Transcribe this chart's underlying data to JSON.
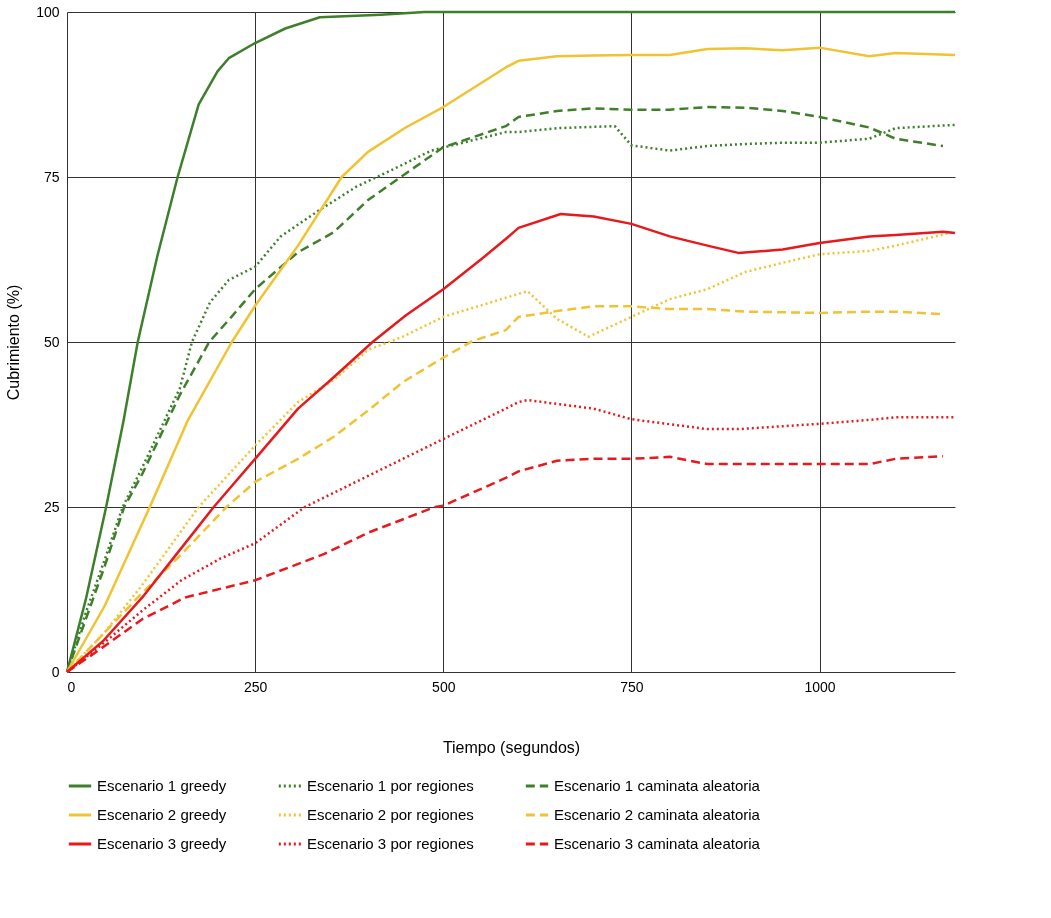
{
  "chart_data": {
    "type": "line",
    "xlabel": "Tiempo (segundos)",
    "ylabel": "Cubrimiento (%)",
    "xlim": [
      0,
      1180
    ],
    "xticks": [
      0,
      250,
      500,
      750,
      1000
    ],
    "ylim": [
      0,
      100
    ],
    "yticks": [
      0,
      25,
      50,
      75,
      100
    ],
    "grid": true,
    "legend": "bottom",
    "series": [
      {
        "name": "Escenario 1 greedy",
        "color": "#3d7f2a",
        "line_style": "solid",
        "x": [
          0,
          25,
          52,
          75,
          94,
          120,
          147,
          175,
          200,
          215,
          250,
          290,
          336,
          417,
          475,
          1180
        ],
        "values": [
          0,
          11,
          25,
          38,
          50,
          63,
          75,
          86,
          91,
          93,
          95.3,
          97.5,
          99.2,
          99.6,
          100,
          100
        ]
      },
      {
        "name": "Escenario 1 por regiones",
        "color": "#3d7f2a",
        "line_style": "dotted",
        "x": [
          0,
          25,
          50,
          74,
          100,
          125,
          150,
          166,
          190,
          215,
          250,
          284,
          333,
          384,
          434,
          484,
          583,
          600,
          651,
          700,
          728,
          750,
          801,
          851,
          901,
          951,
          1000,
          1066,
          1101,
          1180
        ],
        "values": [
          0,
          9,
          17,
          25,
          31,
          37,
          43,
          50,
          56,
          59.4,
          61.4,
          66,
          69.8,
          73.5,
          76.2,
          79,
          81.8,
          81.8,
          82.4,
          82.6,
          82.7,
          79.8,
          79,
          79.7,
          80,
          80.2,
          80.2,
          80.8,
          82.4,
          82.9
        ]
      },
      {
        "name": "Escenario 1 caminata aleatoria",
        "color": "#3d7f2a",
        "line_style": "dashed",
        "x": [
          0,
          25,
          50,
          76,
          100,
          125,
          150,
          189,
          220,
          250,
          307,
          354,
          400,
          446,
          500,
          583,
          600,
          651,
          700,
          750,
          801,
          851,
          901,
          951,
          1000,
          1066,
          1101,
          1164
        ],
        "values": [
          0,
          8,
          16,
          25,
          30,
          36,
          42,
          50,
          54,
          58,
          63.6,
          66.6,
          71.5,
          75.2,
          79.5,
          82.7,
          84.1,
          85,
          85.4,
          85.2,
          85.2,
          85.6,
          85.5,
          85,
          84.1,
          82.5,
          80.8,
          79.7
        ]
      },
      {
        "name": "Escenario 2 greedy",
        "color": "#f1c232",
        "line_style": "solid",
        "x": [
          0,
          50,
          110,
          160,
          219,
          250,
          307,
          365,
          400,
          450,
          500,
          583,
          600,
          651,
          700,
          750,
          801,
          851,
          901,
          951,
          1000,
          1066,
          1101,
          1180
        ],
        "values": [
          0,
          10,
          25,
          38,
          50,
          55.5,
          64.6,
          75,
          78.8,
          82.5,
          85.6,
          91.6,
          92.6,
          93.3,
          93.4,
          93.5,
          93.5,
          94.4,
          94.5,
          94.2,
          94.6,
          93.3,
          93.8,
          93.5
        ]
      },
      {
        "name": "Escenario 2 por regiones",
        "color": "#f1c232",
        "line_style": "dotted",
        "x": [
          0,
          50,
          100,
          175,
          250,
          307,
          354,
          400,
          446,
          500,
          583,
          612,
          651,
          693,
          750,
          801,
          851,
          901,
          951,
          1000,
          1066,
          1101,
          1180
        ],
        "values": [
          0,
          6,
          13.2,
          25,
          34.3,
          40.9,
          44.2,
          48.8,
          50.8,
          53.8,
          56.7,
          57.7,
          53.5,
          50.8,
          53.8,
          56.5,
          58,
          60.6,
          62,
          63.3,
          63.8,
          64.6,
          66.7
        ]
      },
      {
        "name": "Escenario 2 caminata aleatoria",
        "color": "#f1c232",
        "line_style": "dashed",
        "x": [
          0,
          50,
          100,
          150,
          212,
          250,
          307,
          354,
          400,
          446,
          498,
          538,
          583,
          600,
          651,
          700,
          750,
          801,
          851,
          901,
          1000,
          1066,
          1101,
          1164
        ],
        "values": [
          0,
          6,
          12,
          17.6,
          25,
          28.8,
          32.3,
          35.6,
          39.6,
          43.9,
          47.5,
          50.1,
          51.8,
          53.8,
          54.7,
          55.4,
          55.4,
          55,
          55,
          54.6,
          54.4,
          54.6,
          54.6,
          54.2
        ]
      },
      {
        "name": "Escenario 3 greedy",
        "color": "#e8191c",
        "line_style": "solid",
        "x": [
          0,
          48,
          100,
          150,
          195,
          250,
          307,
          350,
          406,
          450,
          500,
          550,
          583,
          600,
          656,
          700,
          750,
          801,
          851,
          892,
          951,
          1000,
          1066,
          1101,
          1164,
          1180
        ],
        "values": [
          0,
          4.7,
          11.3,
          18.5,
          25,
          32.3,
          39.9,
          44.2,
          50,
          54,
          58,
          62.5,
          65.6,
          67.3,
          69.4,
          69,
          67.9,
          66,
          64.6,
          63.5,
          64,
          65,
          66,
          66.2,
          66.7,
          66.5
        ]
      },
      {
        "name": "Escenario 3 por regiones",
        "color": "#e8191c",
        "line_style": "dotted",
        "x": [
          0,
          50,
          100,
          152,
          204,
          250,
          316,
          400,
          500,
          583,
          600,
          612,
          700,
          750,
          851,
          892,
          1000,
          1066,
          1101,
          1180
        ],
        "values": [
          0,
          4.5,
          9.3,
          13.9,
          17.2,
          19.5,
          25,
          29.7,
          35.3,
          39.9,
          40.9,
          41.2,
          39.9,
          38.3,
          36.8,
          36.8,
          37.6,
          38.2,
          38.6,
          38.6
        ]
      },
      {
        "name": "Escenario 3 caminata aleatoria",
        "color": "#e8191c",
        "line_style": "dashed",
        "x": [
          0,
          42,
          100,
          157,
          250,
          342,
          400,
          489,
          500,
          583,
          600,
          651,
          700,
          750,
          801,
          851,
          892,
          1000,
          1066,
          1101,
          1164
        ],
        "values": [
          0,
          3.3,
          8,
          11.3,
          13.9,
          17.9,
          21.1,
          25,
          25.2,
          29.4,
          30.4,
          32,
          32.3,
          32.3,
          32.6,
          31.5,
          31.5,
          31.5,
          31.5,
          32.3,
          32.7
        ]
      }
    ]
  }
}
